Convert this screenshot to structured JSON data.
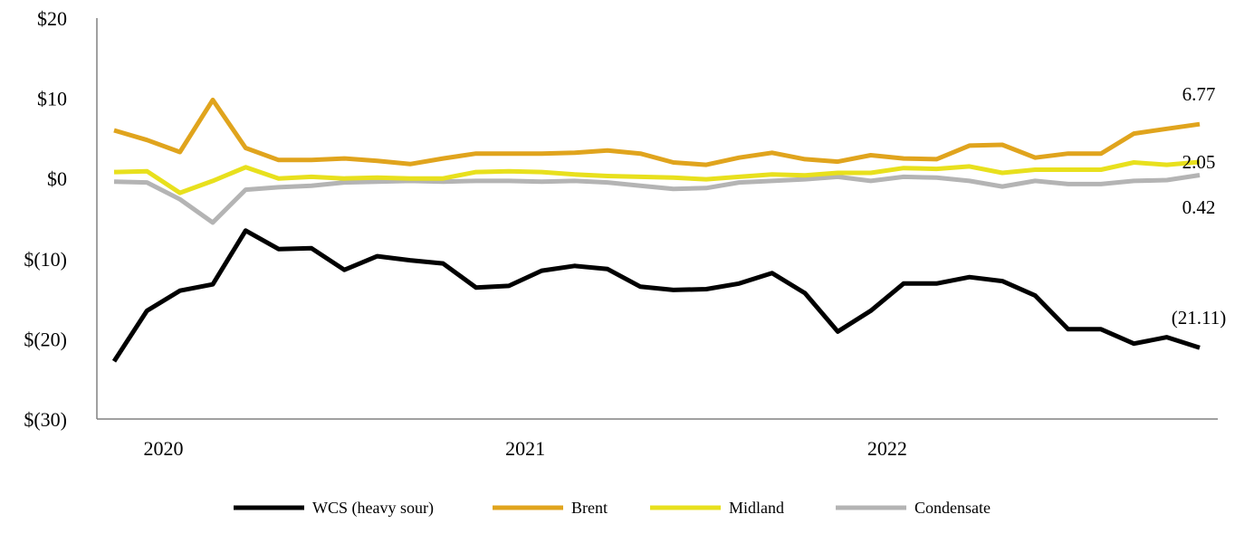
{
  "chart_data": {
    "type": "line",
    "title": "",
    "xlabel": "",
    "ylabel": "",
    "ylim": [
      -30,
      20
    ],
    "y_ticks": [
      20,
      10,
      0,
      -10,
      -20,
      -30
    ],
    "y_tick_labels": [
      "$20",
      "$10",
      "$0",
      "$(10)",
      "$(20)",
      "$(30)"
    ],
    "x_tick_labels": [
      {
        "label": "2020",
        "center_index": 1.5
      },
      {
        "label": "2021",
        "center_index": 12.5
      },
      {
        "label": "2022",
        "center_index": 23.5
      }
    ],
    "grid": false,
    "legend_position": "bottom",
    "point_count": 34,
    "series": [
      {
        "name": "WCS (heavy sour)",
        "color": "#000000",
        "end_label": "(21.11)",
        "values": [
          -22.8,
          -16.5,
          -14.0,
          -13.2,
          -6.5,
          -8.8,
          -8.7,
          -11.4,
          -9.7,
          -10.2,
          -10.6,
          -13.6,
          -13.4,
          -11.5,
          -10.9,
          -11.3,
          -13.5,
          -13.9,
          -13.8,
          -13.1,
          -11.8,
          -14.3,
          -19.1,
          -16.5,
          -13.1,
          -13.1,
          -12.3,
          -12.8,
          -14.6,
          -18.8,
          -18.8,
          -20.6,
          -19.8,
          -21.11
        ]
      },
      {
        "name": "Brent",
        "color": "#E0A41D",
        "end_label": "6.77",
        "values": [
          6.0,
          4.8,
          3.3,
          9.8,
          3.8,
          2.3,
          2.3,
          2.5,
          2.2,
          1.8,
          2.5,
          3.1,
          3.1,
          3.1,
          3.2,
          3.5,
          3.1,
          2.0,
          1.7,
          2.6,
          3.2,
          2.4,
          2.1,
          2.9,
          2.5,
          2.4,
          4.1,
          4.2,
          2.6,
          3.1,
          3.1,
          5.6,
          6.2,
          6.77
        ]
      },
      {
        "name": "Midland",
        "color": "#E8E01D",
        "end_label": "2.05",
        "values": [
          0.8,
          0.9,
          -1.8,
          -0.3,
          1.4,
          0.0,
          0.2,
          0.0,
          0.1,
          0.0,
          0.0,
          0.8,
          0.9,
          0.8,
          0.5,
          0.3,
          0.2,
          0.1,
          -0.1,
          0.2,
          0.5,
          0.4,
          0.7,
          0.7,
          1.3,
          1.2,
          1.5,
          0.7,
          1.1,
          1.1,
          1.1,
          2.0,
          1.7,
          2.05
        ]
      },
      {
        "name": "Condensate",
        "color": "#B4B4B4",
        "end_label": "0.42",
        "values": [
          -0.4,
          -0.5,
          -2.6,
          -5.5,
          -1.4,
          -1.1,
          -0.9,
          -0.5,
          -0.4,
          -0.3,
          -0.4,
          -0.3,
          -0.3,
          -0.4,
          -0.3,
          -0.5,
          -0.9,
          -1.3,
          -1.2,
          -0.5,
          -0.3,
          -0.1,
          0.2,
          -0.3,
          0.2,
          0.1,
          -0.3,
          -1.0,
          -0.3,
          -0.7,
          -0.7,
          -0.3,
          -0.2,
          0.42
        ]
      }
    ]
  }
}
